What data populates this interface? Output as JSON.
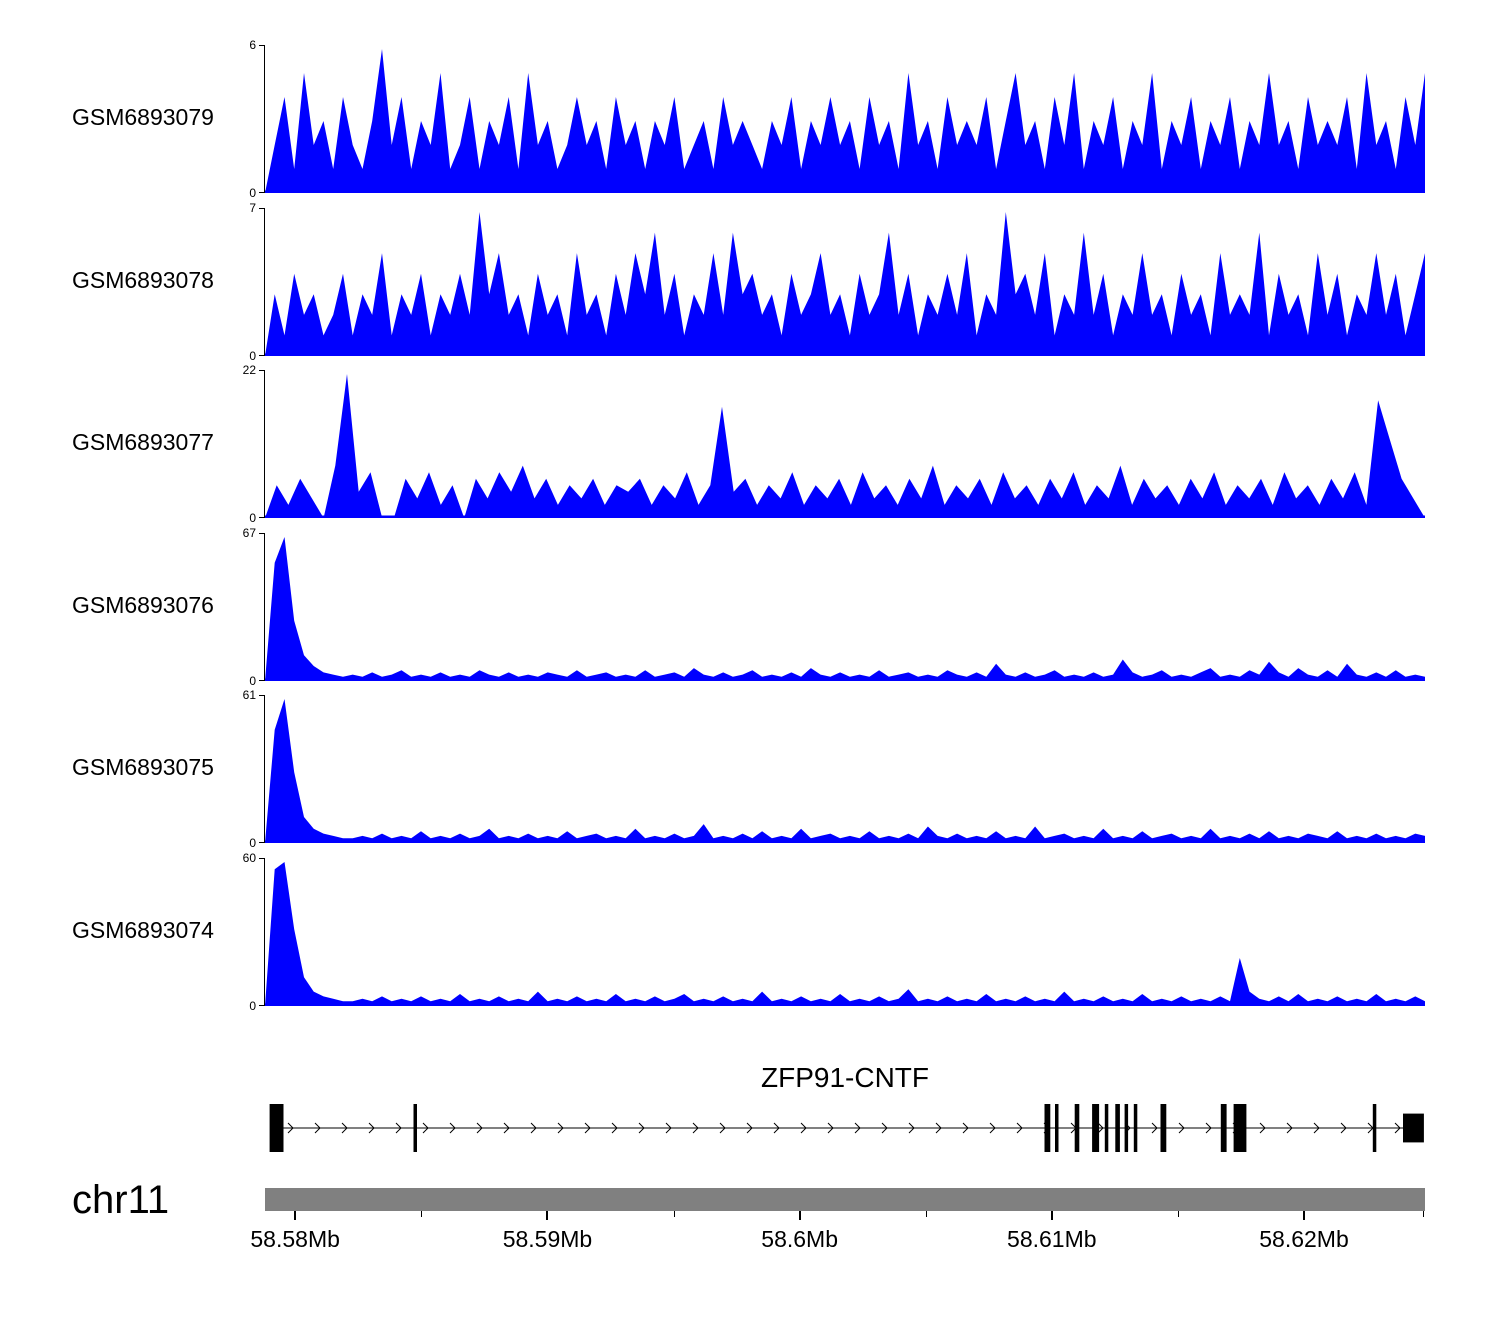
{
  "chart_data": {
    "type": "area",
    "description": "Genome browser coverage tracks over chr11 58.58-58.62 Mb with gene model",
    "signal_color": "#0000FF",
    "exon_color": "#000000",
    "axis_bar_color": "#808080",
    "x_range_mb": [
      58.5788,
      58.6248
    ],
    "grid": false,
    "tracks": [
      {
        "name": "GSM6893079",
        "ymin": 0,
        "ymax": 6,
        "values": [
          0,
          2,
          4,
          1,
          5,
          2,
          3,
          1,
          4,
          2,
          1,
          3,
          6,
          2,
          4,
          1,
          3,
          2,
          5,
          1,
          2,
          4,
          1,
          3,
          2,
          4,
          1,
          5,
          2,
          3,
          1,
          2,
          4,
          2,
          3,
          1,
          4,
          2,
          3,
          1,
          3,
          2,
          4,
          1,
          2,
          3,
          1,
          4,
          2,
          3,
          2,
          1,
          3,
          2,
          4,
          1,
          3,
          2,
          4,
          2,
          3,
          1,
          4,
          2,
          3,
          1,
          5,
          2,
          3,
          1,
          4,
          2,
          3,
          2,
          4,
          1,
          3,
          5,
          2,
          3,
          1,
          4,
          2,
          5,
          1,
          3,
          2,
          4,
          1,
          3,
          2,
          5,
          1,
          3,
          2,
          4,
          1,
          3,
          2,
          4,
          1,
          3,
          2,
          5,
          2,
          3,
          1,
          4,
          2,
          3,
          2,
          4,
          1,
          5,
          2,
          3,
          1,
          4,
          2,
          5
        ]
      },
      {
        "name": "GSM6893078",
        "ymin": 0,
        "ymax": 7,
        "values": [
          0,
          3,
          1,
          4,
          2,
          3,
          1,
          2,
          4,
          1,
          3,
          2,
          5,
          1,
          3,
          2,
          4,
          1,
          3,
          2,
          4,
          2,
          7,
          3,
          5,
          2,
          3,
          1,
          4,
          2,
          3,
          1,
          5,
          2,
          3,
          1,
          4,
          2,
          5,
          3,
          6,
          2,
          4,
          1,
          3,
          2,
          5,
          2,
          6,
          3,
          4,
          2,
          3,
          1,
          4,
          2,
          3,
          5,
          2,
          3,
          1,
          4,
          2,
          3,
          6,
          2,
          4,
          1,
          3,
          2,
          4,
          2,
          5,
          1,
          3,
          2,
          7,
          3,
          4,
          2,
          5,
          1,
          3,
          2,
          6,
          2,
          4,
          1,
          3,
          2,
          5,
          2,
          3,
          1,
          4,
          2,
          3,
          1,
          5,
          2,
          3,
          2,
          6,
          1,
          4,
          2,
          3,
          1,
          5,
          2,
          4,
          1,
          3,
          2,
          5,
          2,
          4,
          1,
          3,
          5
        ]
      },
      {
        "name": "GSM6893077",
        "ymin": 0,
        "ymax": 22,
        "values": [
          0,
          5,
          2,
          6,
          3,
          0,
          8,
          22,
          4,
          7,
          0,
          0,
          6,
          3,
          7,
          2,
          5,
          0,
          6,
          3,
          7,
          4,
          8,
          3,
          6,
          2,
          5,
          3,
          6,
          2,
          5,
          4,
          6,
          2,
          5,
          3,
          7,
          2,
          5,
          17,
          4,
          6,
          2,
          5,
          3,
          7,
          2,
          5,
          3,
          6,
          2,
          7,
          3,
          5,
          2,
          6,
          3,
          8,
          2,
          5,
          3,
          6,
          2,
          7,
          3,
          5,
          2,
          6,
          3,
          7,
          2,
          5,
          3,
          8,
          2,
          6,
          3,
          5,
          2,
          6,
          3,
          7,
          2,
          5,
          3,
          6,
          2,
          7,
          3,
          5,
          2,
          6,
          3,
          7,
          2,
          18,
          12,
          6,
          3,
          0
        ]
      },
      {
        "name": "GSM6893076",
        "ymin": 0,
        "ymax": 67,
        "values": [
          0,
          55,
          67,
          28,
          12,
          7,
          4,
          3,
          2,
          3,
          2,
          4,
          2,
          3,
          5,
          2,
          3,
          2,
          4,
          2,
          3,
          2,
          5,
          3,
          2,
          4,
          2,
          3,
          2,
          4,
          3,
          2,
          5,
          2,
          3,
          4,
          2,
          3,
          2,
          5,
          2,
          3,
          4,
          2,
          6,
          3,
          2,
          4,
          2,
          3,
          5,
          2,
          3,
          2,
          4,
          2,
          6,
          3,
          2,
          4,
          2,
          3,
          2,
          5,
          2,
          3,
          4,
          2,
          3,
          2,
          5,
          3,
          2,
          4,
          2,
          8,
          3,
          2,
          4,
          2,
          3,
          5,
          2,
          3,
          2,
          4,
          2,
          3,
          10,
          4,
          2,
          3,
          5,
          2,
          3,
          2,
          4,
          6,
          2,
          3,
          2,
          5,
          3,
          9,
          4,
          2,
          6,
          3,
          2,
          5,
          2,
          8,
          3,
          2,
          4,
          2,
          5,
          2,
          3,
          2
        ]
      },
      {
        "name": "GSM6893075",
        "ymin": 0,
        "ymax": 61,
        "values": [
          0,
          48,
          61,
          30,
          11,
          6,
          4,
          3,
          2,
          2,
          3,
          2,
          4,
          2,
          3,
          2,
          5,
          2,
          3,
          2,
          4,
          2,
          3,
          6,
          2,
          3,
          2,
          4,
          2,
          3,
          2,
          5,
          2,
          3,
          4,
          2,
          3,
          2,
          6,
          2,
          3,
          2,
          4,
          2,
          3,
          8,
          2,
          3,
          2,
          4,
          2,
          5,
          2,
          3,
          2,
          6,
          2,
          3,
          4,
          2,
          3,
          2,
          5,
          2,
          3,
          2,
          4,
          2,
          7,
          3,
          2,
          4,
          2,
          3,
          2,
          5,
          2,
          3,
          2,
          7,
          2,
          3,
          4,
          2,
          3,
          2,
          6,
          2,
          3,
          2,
          5,
          2,
          3,
          4,
          2,
          3,
          2,
          6,
          2,
          3,
          2,
          4,
          2,
          5,
          2,
          3,
          2,
          4,
          3,
          2,
          5,
          2,
          3,
          2,
          4,
          2,
          3,
          2,
          4,
          3
        ]
      },
      {
        "name": "GSM6893074",
        "ymin": 0,
        "ymax": 60,
        "values": [
          0,
          57,
          60,
          32,
          12,
          6,
          4,
          3,
          2,
          2,
          3,
          2,
          4,
          2,
          3,
          2,
          4,
          2,
          3,
          2,
          5,
          2,
          3,
          2,
          4,
          2,
          3,
          2,
          6,
          2,
          3,
          2,
          4,
          2,
          3,
          2,
          5,
          2,
          3,
          2,
          4,
          2,
          3,
          5,
          2,
          3,
          2,
          4,
          2,
          3,
          2,
          6,
          2,
          3,
          2,
          4,
          2,
          3,
          2,
          5,
          2,
          3,
          2,
          4,
          2,
          3,
          7,
          2,
          3,
          2,
          4,
          2,
          3,
          2,
          5,
          2,
          3,
          2,
          4,
          2,
          3,
          2,
          6,
          2,
          3,
          2,
          4,
          2,
          3,
          2,
          5,
          2,
          3,
          2,
          4,
          2,
          3,
          2,
          4,
          2,
          20,
          6,
          3,
          2,
          4,
          2,
          5,
          2,
          3,
          2,
          4,
          2,
          3,
          2,
          5,
          2,
          3,
          2,
          4,
          2
        ]
      }
    ],
    "gene_track": {
      "label": "ZFP91-CNTF",
      "strand": "+",
      "exons": [
        {
          "x": 0.004,
          "w": 0.012,
          "h": 1
        },
        {
          "x": 0.128,
          "w": 0.003,
          "h": 1
        },
        {
          "x": 0.672,
          "w": 0.005,
          "h": 1
        },
        {
          "x": 0.681,
          "w": 0.003,
          "h": 1
        },
        {
          "x": 0.698,
          "w": 0.004,
          "h": 1
        },
        {
          "x": 0.713,
          "w": 0.006,
          "h": 1
        },
        {
          "x": 0.724,
          "w": 0.003,
          "h": 1
        },
        {
          "x": 0.733,
          "w": 0.004,
          "h": 1
        },
        {
          "x": 0.741,
          "w": 0.003,
          "h": 1
        },
        {
          "x": 0.749,
          "w": 0.003,
          "h": 1
        },
        {
          "x": 0.772,
          "w": 0.005,
          "h": 1
        },
        {
          "x": 0.824,
          "w": 0.005,
          "h": 1
        },
        {
          "x": 0.835,
          "w": 0.011,
          "h": 1
        },
        {
          "x": 0.955,
          "w": 0.003,
          "h": 1
        },
        {
          "x": 0.981,
          "w": 0.018,
          "h": 0.6
        }
      ]
    },
    "axis": {
      "chromosome": "chr11",
      "major_ticks": [
        {
          "label": "58.58Mb",
          "f": 0.026
        },
        {
          "label": "58.59Mb",
          "f": 0.2435
        },
        {
          "label": "58.6Mb",
          "f": 0.4609
        },
        {
          "label": "58.61Mb",
          "f": 0.6783
        },
        {
          "label": "58.62Mb",
          "f": 0.8957
        }
      ],
      "minor_ticks": [
        0.1348,
        0.3522,
        0.5696,
        0.787,
        0.9985
      ]
    }
  }
}
